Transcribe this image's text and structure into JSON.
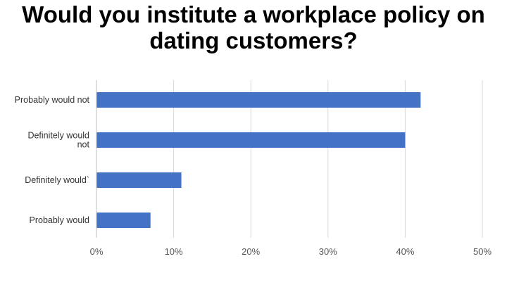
{
  "title_lines": [
    "Would you institute a workplace policy on",
    "dating customers?"
  ],
  "colors": {
    "bar": "#4472C4",
    "grid": "#D9D9D9",
    "axis": "#BFBFBF"
  },
  "chart_data": {
    "type": "bar",
    "orientation": "horizontal",
    "title": "Would you institute a workplace policy on dating customers?",
    "categories": [
      "Probably would not",
      "Definitely would not",
      "Definitely would`",
      "Probably would"
    ],
    "category_label_lines": [
      [
        "Probably would not"
      ],
      [
        "Definitely would",
        "not"
      ],
      [
        "Definitely would`"
      ],
      [
        "Probably would"
      ]
    ],
    "values": [
      42,
      40,
      11,
      7
    ],
    "unit": "%",
    "xlim": [
      0,
      50
    ],
    "xticks": [
      0,
      10,
      20,
      30,
      40,
      50
    ],
    "xtick_labels": [
      "0%",
      "10%",
      "20%",
      "30%",
      "40%",
      "50%"
    ],
    "grid": true,
    "legend": "none"
  }
}
